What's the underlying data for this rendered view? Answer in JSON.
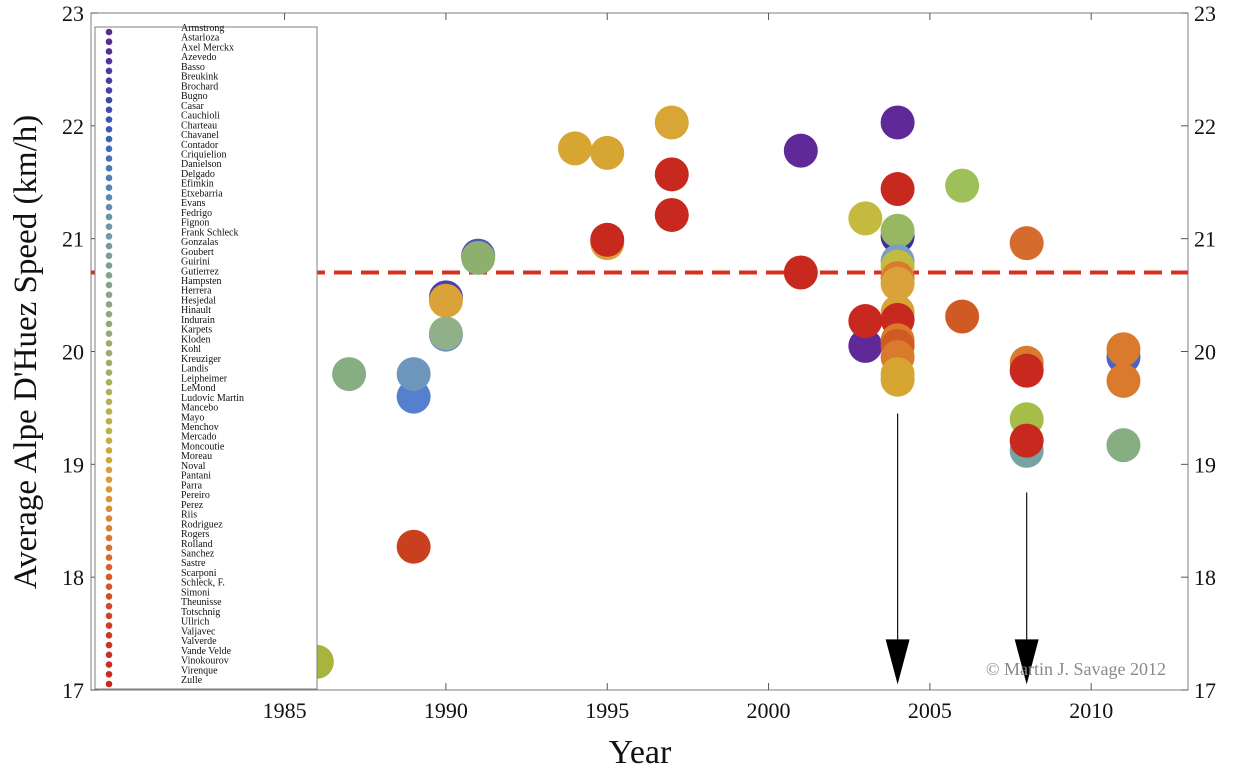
{
  "chart_data": {
    "type": "scatter",
    "xlabel": "Year",
    "ylabel": "Average Alpe D'Huez Speed (km/h)",
    "xlim": [
      1979,
      2013
    ],
    "ylim": [
      17,
      23
    ],
    "x_ticks": [
      "1985",
      "1990",
      "1995",
      "2000",
      "2005",
      "2010"
    ],
    "y_ticks": [
      "17",
      "18",
      "19",
      "20",
      "21",
      "22",
      "23"
    ],
    "reference_line": {
      "y": 20.7,
      "color": "#d6301f",
      "style": "dashed"
    },
    "credit": "© Martin J. Savage 2012",
    "arrows": [
      {
        "x": 2004,
        "y_from": 19.45,
        "y_to": 17.05
      },
      {
        "x": 2008,
        "y_from": 18.75,
        "y_to": 17.05
      }
    ],
    "legend_position": "left",
    "legend": [
      {
        "name": "Armstrong",
        "color": "#5b2a8e"
      },
      {
        "name": "Astarloza",
        "color": "#5a2c92"
      },
      {
        "name": "Axel Merckx",
        "color": "#572f97"
      },
      {
        "name": "Azevedo",
        "color": "#53339b"
      },
      {
        "name": "Basso",
        "color": "#4f379f"
      },
      {
        "name": "Breukink",
        "color": "#4a3ca3"
      },
      {
        "name": "Brochard",
        "color": "#4642a7"
      },
      {
        "name": "Bugno",
        "color": "#4247aa"
      },
      {
        "name": "Casar",
        "color": "#3f4eae"
      },
      {
        "name": "Cauchioli",
        "color": "#3d55b1"
      },
      {
        "name": "Charteau",
        "color": "#3c5cb4"
      },
      {
        "name": "Chavanel",
        "color": "#3d63b6"
      },
      {
        "name": "Contador",
        "color": "#406ab8"
      },
      {
        "name": "Criquielion",
        "color": "#4471b9"
      },
      {
        "name": "Danielson",
        "color": "#4977b9"
      },
      {
        "name": "Delgado",
        "color": "#4f7db8"
      },
      {
        "name": "Efimkin",
        "color": "#5683b7"
      },
      {
        "name": "Etxebarria",
        "color": "#5d88b4"
      },
      {
        "name": "Evans",
        "color": "#638db1"
      },
      {
        "name": "Fedrigo",
        "color": "#6a91ad"
      },
      {
        "name": "Fignon",
        "color": "#7094a8"
      },
      {
        "name": "Frank Schleck",
        "color": "#7597a3"
      },
      {
        "name": "Gonzalas",
        "color": "#79999e"
      },
      {
        "name": "Goubert",
        "color": "#7d9c99"
      },
      {
        "name": "Guirini",
        "color": "#809e94"
      },
      {
        "name": "Gutierrez",
        "color": "#83a090"
      },
      {
        "name": "Hampsten",
        "color": "#86a28c"
      },
      {
        "name": "Herrera",
        "color": "#89a488"
      },
      {
        "name": "Hesjedal",
        "color": "#8ca584"
      },
      {
        "name": "Hinault",
        "color": "#8fa780"
      },
      {
        "name": "Indurain",
        "color": "#92a87c"
      },
      {
        "name": "Karpets",
        "color": "#95a978"
      },
      {
        "name": "Kloden",
        "color": "#99ab73"
      },
      {
        "name": "Kohl",
        "color": "#9cac6e"
      },
      {
        "name": "Kreuziger",
        "color": "#a0ad69"
      },
      {
        "name": "Landis",
        "color": "#a4ae63"
      },
      {
        "name": "Leipheimer",
        "color": "#a8af5d"
      },
      {
        "name": "LeMond",
        "color": "#adb057"
      },
      {
        "name": "Ludovic Martin",
        "color": "#b2b052"
      },
      {
        "name": "Mancebo",
        "color": "#b7b04d"
      },
      {
        "name": "Mayo",
        "color": "#bcaf48"
      },
      {
        "name": "Menchov",
        "color": "#c1ae44"
      },
      {
        "name": "Mercado",
        "color": "#c6ac41"
      },
      {
        "name": "Moncoutie",
        "color": "#caa93e"
      },
      {
        "name": "Moreau",
        "color": "#cea63c"
      },
      {
        "name": "Noval",
        "color": "#d1a23a"
      },
      {
        "name": "Pantani",
        "color": "#d49e39"
      },
      {
        "name": "Parra",
        "color": "#d69938"
      },
      {
        "name": "Pereiro",
        "color": "#d79337"
      },
      {
        "name": "Perez",
        "color": "#d88d36"
      },
      {
        "name": "Riis",
        "color": "#d88734"
      },
      {
        "name": "Rodriguez",
        "color": "#d88033"
      },
      {
        "name": "Rogers",
        "color": "#d77931"
      },
      {
        "name": "Rolland",
        "color": "#d6722f"
      },
      {
        "name": "Sanchez",
        "color": "#d56b2d"
      },
      {
        "name": "Sastre",
        "color": "#d4642b"
      },
      {
        "name": "Scarponi",
        "color": "#d35d29"
      },
      {
        "name": "Schleck, F.",
        "color": "#d25628"
      },
      {
        "name": "Simoni",
        "color": "#d14f26"
      },
      {
        "name": "Theunisse",
        "color": "#d04925"
      },
      {
        "name": "Totschnig",
        "color": "#cf4324"
      },
      {
        "name": "Ullrich",
        "color": "#ce3d23"
      },
      {
        "name": "Valjavec",
        "color": "#cd3822"
      },
      {
        "name": "Valverde",
        "color": "#cc3421"
      },
      {
        "name": "Vande Velde",
        "color": "#cb3020"
      },
      {
        "name": "Vinokourov",
        "color": "#ca2d20"
      },
      {
        "name": "Virenque",
        "color": "#c92b1f"
      },
      {
        "name": "Zulle",
        "color": "#c8291f"
      }
    ],
    "points": [
      {
        "x": 1986,
        "y": 17.25,
        "color": "#a8b43d"
      },
      {
        "x": 1987,
        "y": 19.8,
        "color": "#86ae82"
      },
      {
        "x": 1989,
        "y": 19.6,
        "color": "#5680cf"
      },
      {
        "x": 1989,
        "y": 19.8,
        "color": "#6d96bc"
      },
      {
        "x": 1989,
        "y": 18.27,
        "color": "#c9401e"
      },
      {
        "x": 1990,
        "y": 20.48,
        "color": "#4d3fab"
      },
      {
        "x": 1990,
        "y": 20.45,
        "color": "#d9a33a"
      },
      {
        "x": 1990,
        "y": 20.15,
        "color": "#5c7fc9"
      },
      {
        "x": 1990,
        "y": 20.16,
        "color": "#8fb088"
      },
      {
        "x": 1991,
        "y": 20.85,
        "color": "#4c55ba"
      },
      {
        "x": 1991,
        "y": 20.83,
        "color": "#8eb06f"
      },
      {
        "x": 1994,
        "y": 21.8,
        "color": "#d6a532"
      },
      {
        "x": 1995,
        "y": 21.76,
        "color": "#d6a532"
      },
      {
        "x": 1995,
        "y": 20.96,
        "color": "#d9a33a"
      },
      {
        "x": 1995,
        "y": 20.99,
        "color": "#c8291f"
      },
      {
        "x": 1997,
        "y": 22.03,
        "color": "#d8a637"
      },
      {
        "x": 1997,
        "y": 21.57,
        "color": "#c8291f"
      },
      {
        "x": 1997,
        "y": 21.21,
        "color": "#c8291f"
      },
      {
        "x": 2001,
        "y": 21.78,
        "color": "#5f2a98"
      },
      {
        "x": 2001,
        "y": 20.7,
        "color": "#c8291f"
      },
      {
        "x": 2003,
        "y": 21.18,
        "color": "#c4ba40"
      },
      {
        "x": 2003,
        "y": 20.05,
        "color": "#5f2a98"
      },
      {
        "x": 2003,
        "y": 20.27,
        "color": "#c8291f"
      },
      {
        "x": 2004,
        "y": 22.03,
        "color": "#5f2a98"
      },
      {
        "x": 2004,
        "y": 21.44,
        "color": "#c8291f"
      },
      {
        "x": 2004,
        "y": 21.02,
        "color": "#3a2f9e"
      },
      {
        "x": 2004,
        "y": 21.07,
        "color": "#97b861"
      },
      {
        "x": 2004,
        "y": 20.8,
        "color": "#7a9fc2"
      },
      {
        "x": 2004,
        "y": 20.75,
        "color": "#c4ba40"
      },
      {
        "x": 2004,
        "y": 20.65,
        "color": "#d97a2c"
      },
      {
        "x": 2004,
        "y": 20.6,
        "color": "#d9a33a"
      },
      {
        "x": 2004,
        "y": 20.35,
        "color": "#d9a33a"
      },
      {
        "x": 2004,
        "y": 20.28,
        "color": "#c8291f"
      },
      {
        "x": 2004,
        "y": 20.1,
        "color": "#d97a2c"
      },
      {
        "x": 2004,
        "y": 20.05,
        "color": "#cf5a24"
      },
      {
        "x": 2004,
        "y": 19.95,
        "color": "#d97a2c"
      },
      {
        "x": 2004,
        "y": 19.8,
        "color": "#d6a532"
      },
      {
        "x": 2004,
        "y": 19.75,
        "color": "#d6a532"
      },
      {
        "x": 2006,
        "y": 21.47,
        "color": "#9fbf5a"
      },
      {
        "x": 2006,
        "y": 20.31,
        "color": "#cf5a24"
      },
      {
        "x": 2008,
        "y": 20.96,
        "color": "#d56b2d"
      },
      {
        "x": 2008,
        "y": 19.9,
        "color": "#d97a2c"
      },
      {
        "x": 2008,
        "y": 19.83,
        "color": "#c8291f"
      },
      {
        "x": 2008,
        "y": 19.4,
        "color": "#a7bd4a"
      },
      {
        "x": 2008,
        "y": 19.12,
        "color": "#76a3a4"
      },
      {
        "x": 2008,
        "y": 19.21,
        "color": "#c8291f"
      },
      {
        "x": 2011,
        "y": 19.95,
        "color": "#4a63c8"
      },
      {
        "x": 2011,
        "y": 20.02,
        "color": "#d97a2c"
      },
      {
        "x": 2011,
        "y": 19.74,
        "color": "#d97a2c"
      },
      {
        "x": 2011,
        "y": 19.17,
        "color": "#86ae82"
      }
    ]
  }
}
